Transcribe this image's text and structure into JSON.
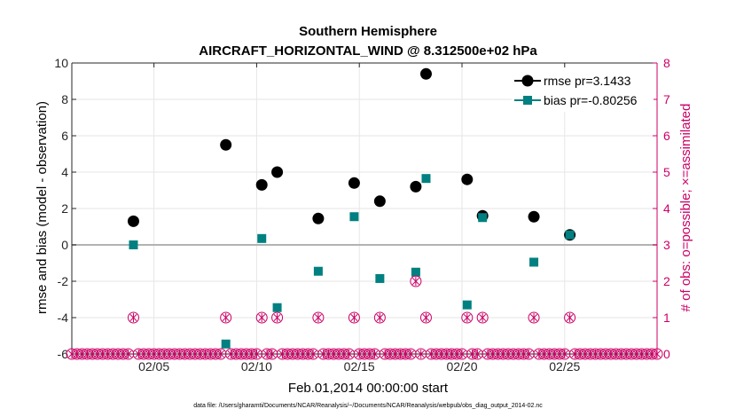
{
  "chart_data": {
    "type": "scatter",
    "title": "Southern Hemisphere",
    "subtitle": "AIRCRAFT_HORIZONTAL_WIND @ 8.312500e+02 hPa",
    "xlabel": "Feb.01,2014 00:00:00 start",
    "ylabel_left": "rmse and bias (model - observation)",
    "ylabel_right": "# of obs: o=possible; ×=assimilated",
    "footer": "data file: /Users/gharamti/Documents/NCAR/Reanalysis/~/Documents/NCAR/Reanalysis/webpub/obs_diag_output_2014-02.nc",
    "xlim": [
      1,
      29.5
    ],
    "ylim_left": [
      -6,
      10
    ],
    "ylim_right": [
      0,
      8
    ],
    "x_ticks": [
      5,
      10,
      15,
      20,
      25
    ],
    "x_tick_labels": [
      "02/05",
      "02/10",
      "02/15",
      "02/20",
      "02/25"
    ],
    "y_left_ticks": [
      -6,
      -4,
      -2,
      0,
      2,
      4,
      6,
      8,
      10
    ],
    "y_left_tick_labels": [
      "-6",
      "-4",
      "-2",
      "0",
      "2",
      "4",
      "6",
      "8",
      "10"
    ],
    "y_right_ticks": [
      0,
      1,
      2,
      3,
      4,
      5,
      6,
      7,
      8
    ],
    "y_right_tick_labels": [
      "0",
      "1",
      "2",
      "3",
      "4",
      "5",
      "6",
      "7",
      "8"
    ],
    "grid": true,
    "legend_position": "top-right",
    "series": [
      {
        "name": "rmse pr=3.1433",
        "axis": "left",
        "marker": "circle",
        "color": "#000000",
        "x": [
          4.0,
          8.5,
          10.25,
          11.0,
          13.0,
          14.75,
          16.0,
          17.75,
          18.25,
          20.25,
          21.0,
          23.5,
          25.25
        ],
        "values": [
          1.3,
          5.5,
          3.3,
          4.0,
          1.45,
          3.4,
          2.4,
          3.2,
          9.4,
          3.6,
          1.6,
          1.55,
          0.55
        ]
      },
      {
        "name": "bias pr=-0.80256",
        "axis": "left",
        "marker": "square",
        "color": "#008080",
        "x": [
          4.0,
          8.5,
          10.25,
          11.0,
          13.0,
          14.75,
          16.0,
          17.75,
          18.25,
          20.25,
          21.0,
          23.5,
          25.25
        ],
        "values": [
          0.0,
          -5.45,
          0.35,
          -3.45,
          -1.45,
          1.55,
          -1.85,
          -1.5,
          3.65,
          -3.3,
          1.5,
          -0.95,
          0.55
        ]
      },
      {
        "name": "obs possible",
        "axis": "right",
        "marker": "open-circle",
        "color": "#cc0066",
        "x": [
          1.0,
          1.25,
          1.5,
          1.75,
          2.0,
          2.25,
          2.5,
          2.75,
          3.0,
          3.25,
          3.5,
          3.75,
          4.0,
          4.25,
          4.5,
          4.75,
          5.0,
          5.25,
          5.5,
          5.75,
          6.0,
          6.25,
          6.5,
          6.75,
          7.0,
          7.25,
          7.5,
          7.75,
          8.0,
          8.25,
          8.5,
          8.75,
          9.0,
          9.25,
          9.5,
          9.75,
          10.0,
          10.25,
          10.5,
          10.75,
          11.0,
          11.25,
          11.5,
          11.75,
          12.0,
          12.25,
          12.5,
          12.75,
          13.0,
          13.25,
          13.5,
          13.75,
          14.0,
          14.25,
          14.5,
          14.75,
          15.0,
          15.25,
          15.5,
          15.75,
          16.0,
          16.25,
          16.5,
          16.75,
          17.0,
          17.25,
          17.5,
          17.75,
          18.0,
          18.25,
          18.5,
          18.75,
          19.0,
          19.25,
          19.5,
          19.75,
          20.0,
          20.25,
          20.5,
          20.75,
          21.0,
          21.25,
          21.5,
          21.75,
          22.0,
          22.25,
          22.5,
          22.75,
          23.0,
          23.25,
          23.5,
          23.75,
          24.0,
          24.25,
          24.5,
          24.75,
          25.0,
          25.25,
          25.5,
          25.75,
          26.0,
          26.25,
          26.5,
          26.75,
          27.0,
          27.25,
          27.5,
          27.75,
          28.0,
          28.25,
          28.5,
          28.75,
          29.0,
          29.25,
          29.5
        ],
        "values": [
          0,
          0,
          0,
          0,
          0,
          0,
          0,
          0,
          0,
          0,
          0,
          0,
          1,
          0,
          0,
          0,
          0,
          0,
          0,
          0,
          0,
          0,
          0,
          0,
          0,
          0,
          0,
          0,
          0,
          0,
          1,
          0,
          0,
          0,
          0,
          0,
          0,
          1,
          0,
          0,
          1,
          0,
          0,
          0,
          0,
          0,
          0,
          0,
          1,
          0,
          0,
          0,
          0,
          0,
          0,
          1,
          0,
          0,
          0,
          0,
          1,
          0,
          0,
          0,
          0,
          0,
          0,
          2,
          0,
          1,
          0,
          0,
          0,
          0,
          0,
          0,
          0,
          1,
          0,
          0,
          1,
          0,
          0,
          0,
          0,
          0,
          0,
          0,
          0,
          0,
          1,
          0,
          0,
          0,
          0,
          0,
          0,
          1,
          0,
          0,
          0,
          0,
          0,
          0,
          0,
          0,
          0,
          0,
          0,
          0,
          0,
          0,
          0,
          0,
          0
        ]
      },
      {
        "name": "obs assimilated",
        "axis": "right",
        "marker": "x",
        "color": "#cc0066",
        "x": [
          1.0,
          1.25,
          1.5,
          1.75,
          2.0,
          2.25,
          2.5,
          2.75,
          3.0,
          3.25,
          3.5,
          3.75,
          4.0,
          4.25,
          4.5,
          4.75,
          5.0,
          5.25,
          5.5,
          5.75,
          6.0,
          6.25,
          6.5,
          6.75,
          7.0,
          7.25,
          7.5,
          7.75,
          8.0,
          8.25,
          8.5,
          8.75,
          9.0,
          9.25,
          9.5,
          9.75,
          10.0,
          10.25,
          10.5,
          10.75,
          11.0,
          11.25,
          11.5,
          11.75,
          12.0,
          12.25,
          12.5,
          12.75,
          13.0,
          13.25,
          13.5,
          13.75,
          14.0,
          14.25,
          14.5,
          14.75,
          15.0,
          15.25,
          15.5,
          15.75,
          16.0,
          16.25,
          16.5,
          16.75,
          17.0,
          17.25,
          17.5,
          17.75,
          18.0,
          18.25,
          18.5,
          18.75,
          19.0,
          19.25,
          19.5,
          19.75,
          20.0,
          20.25,
          20.5,
          20.75,
          21.0,
          21.25,
          21.5,
          21.75,
          22.0,
          22.25,
          22.5,
          22.75,
          23.0,
          23.25,
          23.5,
          23.75,
          24.0,
          24.25,
          24.5,
          24.75,
          25.0,
          25.25,
          25.5,
          25.75,
          26.0,
          26.25,
          26.5,
          26.75,
          27.0,
          27.25,
          27.5,
          27.75,
          28.0,
          28.25,
          28.5,
          28.75,
          29.0,
          29.25,
          29.5
        ],
        "values": [
          0,
          0,
          0,
          0,
          0,
          0,
          0,
          0,
          0,
          0,
          0,
          0,
          1,
          0,
          0,
          0,
          0,
          0,
          0,
          0,
          0,
          0,
          0,
          0,
          0,
          0,
          0,
          0,
          0,
          0,
          1,
          0,
          0,
          0,
          0,
          0,
          0,
          1,
          0,
          0,
          1,
          0,
          0,
          0,
          0,
          0,
          0,
          0,
          1,
          0,
          0,
          0,
          0,
          0,
          0,
          1,
          0,
          0,
          0,
          0,
          1,
          0,
          0,
          0,
          0,
          0,
          0,
          2,
          0,
          1,
          0,
          0,
          0,
          0,
          0,
          0,
          0,
          1,
          0,
          0,
          1,
          0,
          0,
          0,
          0,
          0,
          0,
          0,
          0,
          0,
          1,
          0,
          0,
          0,
          0,
          0,
          0,
          1,
          0,
          0,
          0,
          0,
          0,
          0,
          0,
          0,
          0,
          0,
          0,
          0,
          0,
          0,
          0,
          0,
          0
        ]
      }
    ]
  }
}
